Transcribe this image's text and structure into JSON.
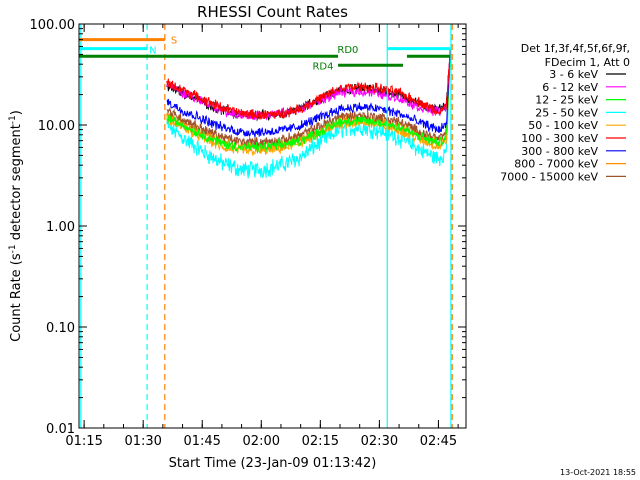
{
  "chart_data": {
    "type": "line",
    "title": "RHESSI Count Rates",
    "xlabel": "Start Time (23-Jan-09 01:13:42)",
    "ylabel_parts": [
      "Count Rate (s",
      "-1",
      " detector segment",
      "-1",
      ")"
    ],
    "yscale": "log",
    "ylim": [
      0.01,
      100
    ],
    "xlim": [
      "01:13:42",
      "02:52:00"
    ],
    "y_ticks": [
      "0.01",
      "0.10",
      "1.00",
      "10.00",
      "100.00"
    ],
    "x_ticks": [
      "01:15",
      "01:30",
      "01:45",
      "02:00",
      "02:15",
      "02:30",
      "02:45"
    ],
    "legend": {
      "header": [
        "Det 1f,3f,4f,5f,6f,9f,",
        "FDecim 1, Att 0"
      ],
      "placement": "right-outside"
    },
    "series": [
      {
        "name": "3 - 6 keV",
        "color": "#000000",
        "points": [
          [
            "01:36",
            24
          ],
          [
            "01:40",
            21
          ],
          [
            "01:45",
            17
          ],
          [
            "01:50",
            14
          ],
          [
            "01:55",
            12.5
          ],
          [
            "02:00",
            12.5
          ],
          [
            "02:05",
            13
          ],
          [
            "02:10",
            14.5
          ],
          [
            "02:15",
            18
          ],
          [
            "02:20",
            22
          ],
          [
            "02:25",
            23
          ],
          [
            "02:30",
            22
          ],
          [
            "02:35",
            20
          ],
          [
            "02:40",
            16
          ],
          [
            "02:45",
            14
          ],
          [
            "02:47",
            16
          ],
          [
            "02:48",
            55
          ]
        ]
      },
      {
        "name": "6 - 12 keV",
        "color": "#ff00ff",
        "points": [
          [
            "01:36",
            25
          ],
          [
            "01:40",
            21
          ],
          [
            "01:45",
            17
          ],
          [
            "01:50",
            14
          ],
          [
            "01:55",
            12.5
          ],
          [
            "02:00",
            12.5
          ],
          [
            "02:05",
            13
          ],
          [
            "02:10",
            14.5
          ],
          [
            "02:15",
            17.5
          ],
          [
            "02:20",
            21
          ],
          [
            "02:25",
            21.5
          ],
          [
            "02:30",
            20.5
          ],
          [
            "02:35",
            18.5
          ],
          [
            "02:40",
            15
          ],
          [
            "02:45",
            13.5
          ],
          [
            "02:47",
            15
          ],
          [
            "02:48",
            55
          ]
        ]
      },
      {
        "name": "12 - 25 keV",
        "color": "#00ff00",
        "points": [
          [
            "01:36",
            12
          ],
          [
            "01:40",
            10
          ],
          [
            "01:45",
            8
          ],
          [
            "01:50",
            6.6
          ],
          [
            "01:55",
            6
          ],
          [
            "02:00",
            6
          ],
          [
            "02:05",
            6.3
          ],
          [
            "02:10",
            7
          ],
          [
            "02:15",
            8.6
          ],
          [
            "02:20",
            10.8
          ],
          [
            "02:25",
            11
          ],
          [
            "02:30",
            10.5
          ],
          [
            "02:35",
            9.6
          ],
          [
            "02:40",
            7.7
          ],
          [
            "02:45",
            6.6
          ],
          [
            "02:47",
            7.5
          ],
          [
            "02:48",
            50
          ]
        ]
      },
      {
        "name": "25 - 50 keV",
        "color": "#00ffff",
        "points": [
          [
            "01:36",
            10
          ],
          [
            "01:40",
            7.5
          ],
          [
            "01:45",
            5.5
          ],
          [
            "01:50",
            4.2
          ],
          [
            "01:55",
            3.6
          ],
          [
            "02:00",
            3.6
          ],
          [
            "02:05",
            4
          ],
          [
            "02:10",
            4.8
          ],
          [
            "02:15",
            6.8
          ],
          [
            "02:20",
            9
          ],
          [
            "02:25",
            9.5
          ],
          [
            "02:30",
            8.8
          ],
          [
            "02:35",
            7.5
          ],
          [
            "02:40",
            5.8
          ],
          [
            "02:45",
            4.6
          ],
          [
            "02:47",
            5.5
          ],
          [
            "02:48",
            48
          ]
        ]
      },
      {
        "name": "50 - 100 keV",
        "color": "#ffa500",
        "points": [
          [
            "01:36",
            11.5
          ],
          [
            "01:40",
            9.5
          ],
          [
            "01:45",
            7.5
          ],
          [
            "01:50",
            6
          ],
          [
            "01:55",
            5.5
          ],
          [
            "02:00",
            5.5
          ],
          [
            "02:05",
            5.8
          ],
          [
            "02:10",
            6.6
          ],
          [
            "02:15",
            8.2
          ],
          [
            "02:20",
            10.3
          ],
          [
            "02:25",
            10.6
          ],
          [
            "02:30",
            10
          ],
          [
            "02:35",
            9
          ],
          [
            "02:40",
            7.2
          ],
          [
            "02:45",
            6.1
          ],
          [
            "02:47",
            7
          ],
          [
            "02:48",
            50
          ]
        ]
      },
      {
        "name": "100 - 300 keV",
        "color": "#ff0000",
        "points": [
          [
            "01:36",
            26
          ],
          [
            "01:40",
            22.5
          ],
          [
            "01:45",
            18
          ],
          [
            "01:50",
            15
          ],
          [
            "01:55",
            13
          ],
          [
            "02:00",
            12.5
          ],
          [
            "02:05",
            13
          ],
          [
            "02:10",
            14.5
          ],
          [
            "02:15",
            18.5
          ],
          [
            "02:20",
            23
          ],
          [
            "02:25",
            24
          ],
          [
            "02:30",
            23
          ],
          [
            "02:35",
            21
          ],
          [
            "02:40",
            17
          ],
          [
            "02:45",
            13.5
          ],
          [
            "02:47",
            15
          ],
          [
            "02:48",
            58
          ]
        ]
      },
      {
        "name": "300 - 800 keV",
        "color": "#0000ff",
        "points": [
          [
            "01:36",
            17
          ],
          [
            "01:40",
            14
          ],
          [
            "01:45",
            11.5
          ],
          [
            "01:50",
            9.5
          ],
          [
            "01:55",
            8.5
          ],
          [
            "02:00",
            8.5
          ],
          [
            "02:05",
            8.8
          ],
          [
            "02:10",
            9.8
          ],
          [
            "02:15",
            12
          ],
          [
            "02:20",
            14.5
          ],
          [
            "02:25",
            15
          ],
          [
            "02:30",
            14.5
          ],
          [
            "02:35",
            13
          ],
          [
            "02:40",
            10.6
          ],
          [
            "02:45",
            9
          ],
          [
            "02:47",
            10
          ],
          [
            "02:48",
            52
          ]
        ]
      },
      {
        "name": "800 - 7000 keV",
        "color": "#ff8c00",
        "points": [
          [
            "01:36",
            13
          ],
          [
            "01:40",
            10.5
          ],
          [
            "01:45",
            8.5
          ],
          [
            "01:50",
            7
          ],
          [
            "01:55",
            6.2
          ],
          [
            "02:00",
            6.2
          ],
          [
            "02:05",
            6.5
          ],
          [
            "02:10",
            7.3
          ],
          [
            "02:15",
            9
          ],
          [
            "02:20",
            11.3
          ],
          [
            "02:25",
            11.6
          ],
          [
            "02:30",
            11
          ],
          [
            "02:35",
            10
          ],
          [
            "02:40",
            8
          ],
          [
            "02:45",
            6.8
          ],
          [
            "02:47",
            7.8
          ],
          [
            "02:48",
            50
          ]
        ]
      },
      {
        "name": "7000 - 15000 keV",
        "color": "#a0522d",
        "points": [
          [
            "01:36",
            14
          ],
          [
            "01:40",
            11.5
          ],
          [
            "01:45",
            9.2
          ],
          [
            "01:50",
            7.6
          ],
          [
            "01:55",
            6.8
          ],
          [
            "02:00",
            6.8
          ],
          [
            "02:05",
            7
          ],
          [
            "02:10",
            8
          ],
          [
            "02:15",
            9.8
          ],
          [
            "02:20",
            12.2
          ],
          [
            "02:25",
            12.5
          ],
          [
            "02:30",
            12
          ],
          [
            "02:35",
            10.8
          ],
          [
            "02:40",
            8.7
          ],
          [
            "02:45",
            7.3
          ],
          [
            "02:47",
            8.3
          ],
          [
            "02:48",
            51
          ]
        ]
      }
    ],
    "flags": [
      {
        "label": "S",
        "color": "#ff8000",
        "y": 70,
        "start": "01:13:42",
        "end": "01:35:30"
      },
      {
        "label": "N",
        "color": "#00ffff",
        "y": 57,
        "start": "01:13:42",
        "end": "01:31:00",
        "label_at": "01:31:30"
      },
      {
        "label": "N",
        "color": "#00ffff",
        "y": 57,
        "start": "02:32:00",
        "end": "02:48:00",
        "show_label": false
      },
      {
        "label": "RD0",
        "color": "#008000",
        "y": 48,
        "start": "01:13:42",
        "end": "02:19:30",
        "label_at": "02:22:00",
        "label_above": true
      },
      {
        "label": "RD0",
        "color": "#008000",
        "y": 48,
        "start": "02:37:00",
        "end": "02:48:00",
        "show_label": false
      },
      {
        "label": "RD4",
        "color": "#008000",
        "y": 39,
        "start": "02:19:30",
        "end": "02:36:00",
        "label_at": "02:13:00",
        "label_left": true
      }
    ],
    "vlines": [
      {
        "time": "01:14:10",
        "color": "#00ffff",
        "dash": false
      },
      {
        "time": "01:31:00",
        "color": "#00ffff",
        "dash": true
      },
      {
        "time": "01:35:30",
        "color": "#ff8000",
        "dash": true
      },
      {
        "time": "02:32:00",
        "color": "#00ffff",
        "dash": false
      },
      {
        "time": "02:48:10",
        "color": "#00ffff",
        "dash": false
      },
      {
        "time": "02:48:30",
        "color": "#ff8000",
        "dash": true
      }
    ],
    "timestamp": "13-Oct-2021 18:55",
    "grid": false
  }
}
